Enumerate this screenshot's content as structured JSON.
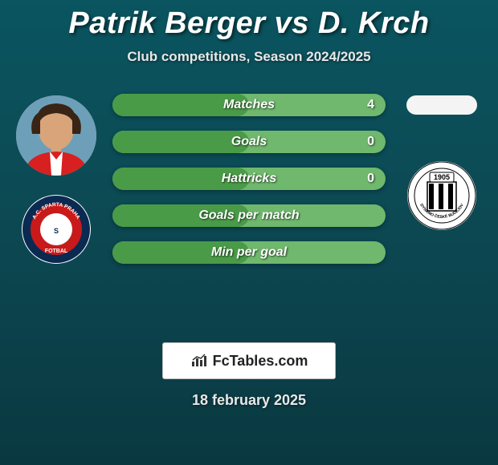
{
  "title": "Patrik Berger vs D. Krch",
  "subtitle": "Club competitions, Season 2024/2025",
  "date": "18 february 2025",
  "footer_brand": "FcTables.com",
  "colors": {
    "bar_left_bg": "#4a9b48",
    "bar_right_bg": "#6fb86d",
    "bar_fill_split": 50,
    "title_color": "#ffffff",
    "text_shadow": "rgba(0,0,0,0.6)"
  },
  "stats": [
    {
      "label": "Matches",
      "right_value": "4",
      "show_right": true
    },
    {
      "label": "Goals",
      "right_value": "0",
      "show_right": true
    },
    {
      "label": "Hattricks",
      "right_value": "0",
      "show_right": true
    },
    {
      "label": "Goals per match",
      "right_value": "",
      "show_right": false
    },
    {
      "label": "Min per goal",
      "right_value": "",
      "show_right": false
    }
  ],
  "left_player": {
    "name": "Patrik Berger",
    "club": "Sparta Praha",
    "club_colors": {
      "outer": "#0a2a52",
      "mid": "#c81a1a",
      "inner": "#fff"
    },
    "club_text": "AC SPARTA PRAHA"
  },
  "right_player": {
    "name": "D. Krch",
    "club": "Dynamo Ceske Budejovice",
    "club_year": "1905",
    "club_colors": {
      "bg": "#fff",
      "stripes": "#000"
    }
  }
}
